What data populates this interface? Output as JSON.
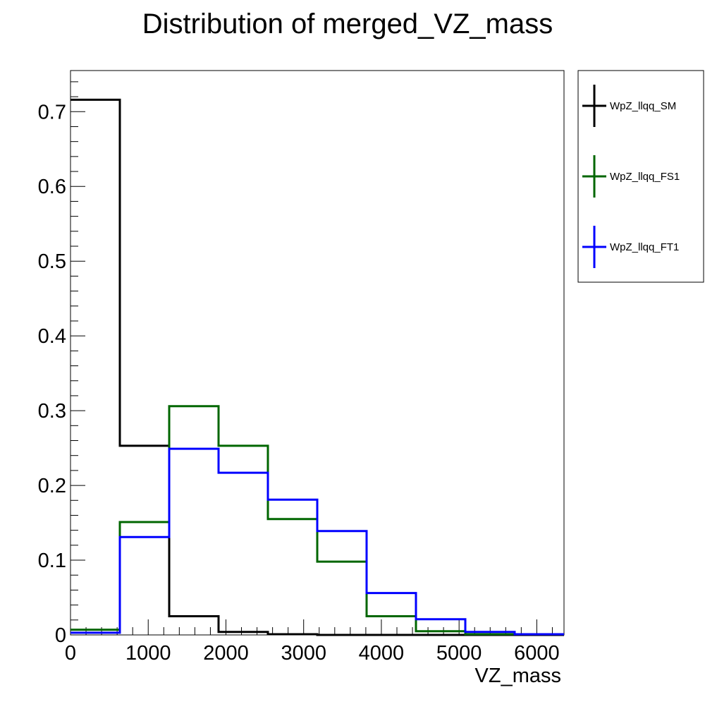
{
  "chart_data": {
    "type": "histogram-step",
    "title": "Distribution of merged_VZ_mass",
    "xlabel": "VZ_mass",
    "ylabel": "",
    "xlim": [
      0,
      6350
    ],
    "ylim": [
      0,
      0.755
    ],
    "x_ticks": [
      0,
      1000,
      2000,
      3000,
      4000,
      5000,
      6000
    ],
    "x_tick_labels": [
      "0",
      "1000",
      "2000",
      "3000",
      "4000",
      "5000",
      "6000"
    ],
    "y_ticks": [
      0,
      0.1,
      0.2,
      0.3,
      0.4,
      0.5,
      0.6,
      0.7
    ],
    "y_tick_labels": [
      "0",
      "0.1",
      "0.2",
      "0.3",
      "0.4",
      "0.5",
      "0.6",
      "0.7"
    ],
    "bin_edges": [
      0,
      635,
      1270,
      1905,
      2540,
      3175,
      3810,
      4445,
      5080,
      5715,
      6350
    ],
    "legend_position": "right, outside plot (top)",
    "series": [
      {
        "name": "WpZ_llqq_SM",
        "color": "#000000",
        "values": [
          0.716,
          0.253,
          0.025,
          0.004,
          0.001,
          0.0,
          0.0,
          0.0,
          0.0,
          0.0
        ]
      },
      {
        "name": "WpZ_llqq_FS1",
        "color": "#006600",
        "values": [
          0.007,
          0.151,
          0.306,
          0.253,
          0.155,
          0.098,
          0.025,
          0.005,
          0.001,
          0.001
        ]
      },
      {
        "name": "WpZ_llqq_FT1",
        "color": "#0000ff",
        "values": [
          0.003,
          0.131,
          0.249,
          0.217,
          0.181,
          0.139,
          0.056,
          0.021,
          0.004,
          0.001
        ]
      }
    ]
  }
}
